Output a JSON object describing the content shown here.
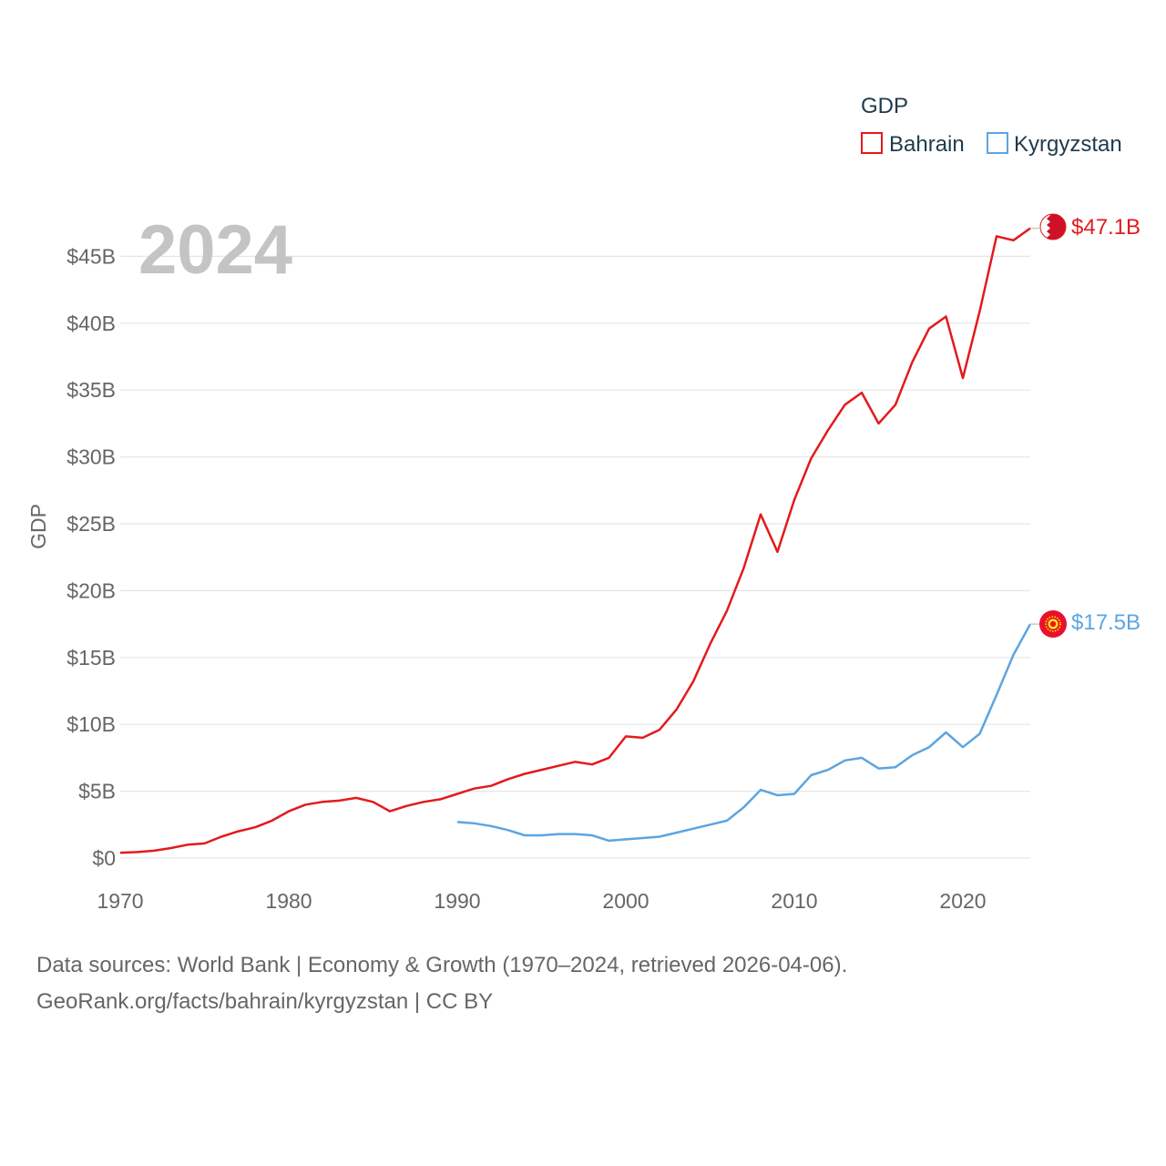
{
  "chart_data": {
    "type": "line",
    "title": "",
    "year_label": "2024",
    "ylabel": "GDP",
    "xlabel": "",
    "legend": {
      "title": "GDP",
      "position": "top-right"
    },
    "xlim": [
      1970,
      2024
    ],
    "ylim": [
      0,
      48
    ],
    "x_ticks": [
      {
        "value": 1970,
        "label": "1970"
      },
      {
        "value": 1980,
        "label": "1980"
      },
      {
        "value": 1990,
        "label": "1990"
      },
      {
        "value": 2000,
        "label": "2000"
      },
      {
        "value": 2010,
        "label": "2010"
      },
      {
        "value": 2020,
        "label": "2020"
      }
    ],
    "y_ticks": [
      {
        "value": 0,
        "label": "$0"
      },
      {
        "value": 5,
        "label": "$5B"
      },
      {
        "value": 10,
        "label": "$10B"
      },
      {
        "value": 15,
        "label": "$15B"
      },
      {
        "value": 20,
        "label": "$20B"
      },
      {
        "value": 25,
        "label": "$25B"
      },
      {
        "value": 30,
        "label": "$30B"
      },
      {
        "value": 35,
        "label": "$35B"
      },
      {
        "value": 40,
        "label": "$40B"
      },
      {
        "value": 45,
        "label": "$45B"
      }
    ],
    "grid": true,
    "units": "billions USD",
    "series": [
      {
        "name": "Bahrain",
        "color": "#e31a1c",
        "end_label": "$47.1B",
        "x": [
          1970,
          1971,
          1972,
          1973,
          1974,
          1975,
          1976,
          1977,
          1978,
          1979,
          1980,
          1981,
          1982,
          1983,
          1984,
          1985,
          1986,
          1987,
          1988,
          1989,
          1990,
          1991,
          1992,
          1993,
          1994,
          1995,
          1996,
          1997,
          1998,
          1999,
          2000,
          2001,
          2002,
          2003,
          2004,
          2005,
          2006,
          2007,
          2008,
          2009,
          2010,
          2011,
          2012,
          2013,
          2014,
          2015,
          2016,
          2017,
          2018,
          2019,
          2020,
          2021,
          2022,
          2023,
          2024
        ],
        "values": [
          0.4,
          0.45,
          0.55,
          0.75,
          1.0,
          1.1,
          1.6,
          2.0,
          2.3,
          2.8,
          3.5,
          4.0,
          4.2,
          4.3,
          4.5,
          4.2,
          3.5,
          3.9,
          4.2,
          4.4,
          4.8,
          5.2,
          5.4,
          5.9,
          6.3,
          6.6,
          6.9,
          7.2,
          7.0,
          7.5,
          9.1,
          9.0,
          9.6,
          11.1,
          13.2,
          16.0,
          18.5,
          21.7,
          25.7,
          22.9,
          26.8,
          29.9,
          32.0,
          33.9,
          34.8,
          32.5,
          33.9,
          37.1,
          39.6,
          40.5,
          35.9,
          40.9,
          46.5,
          46.2,
          47.1
        ]
      },
      {
        "name": "Kyrgyzstan",
        "color": "#5da5e0",
        "end_label": "$17.5B",
        "x": [
          1990,
          1991,
          1992,
          1993,
          1994,
          1995,
          1996,
          1997,
          1998,
          1999,
          2000,
          2001,
          2002,
          2003,
          2004,
          2005,
          2006,
          2007,
          2008,
          2009,
          2010,
          2011,
          2012,
          2013,
          2014,
          2015,
          2016,
          2017,
          2018,
          2019,
          2020,
          2021,
          2022,
          2023,
          2024
        ],
        "values": [
          2.7,
          2.6,
          2.4,
          2.1,
          1.7,
          1.7,
          1.8,
          1.8,
          1.7,
          1.3,
          1.4,
          1.5,
          1.6,
          1.9,
          2.2,
          2.5,
          2.8,
          3.8,
          5.1,
          4.7,
          4.8,
          6.2,
          6.6,
          7.3,
          7.5,
          6.7,
          6.8,
          7.7,
          8.3,
          9.4,
          8.3,
          9.3,
          12.2,
          15.2,
          17.5
        ]
      }
    ]
  },
  "source": {
    "line1": "Data sources: World Bank | Economy & Growth (1970–2024, retrieved 2026-04-06).",
    "line2": "GeoRank.org/facts/bahrain/kyrgyzstan | CC BY"
  }
}
